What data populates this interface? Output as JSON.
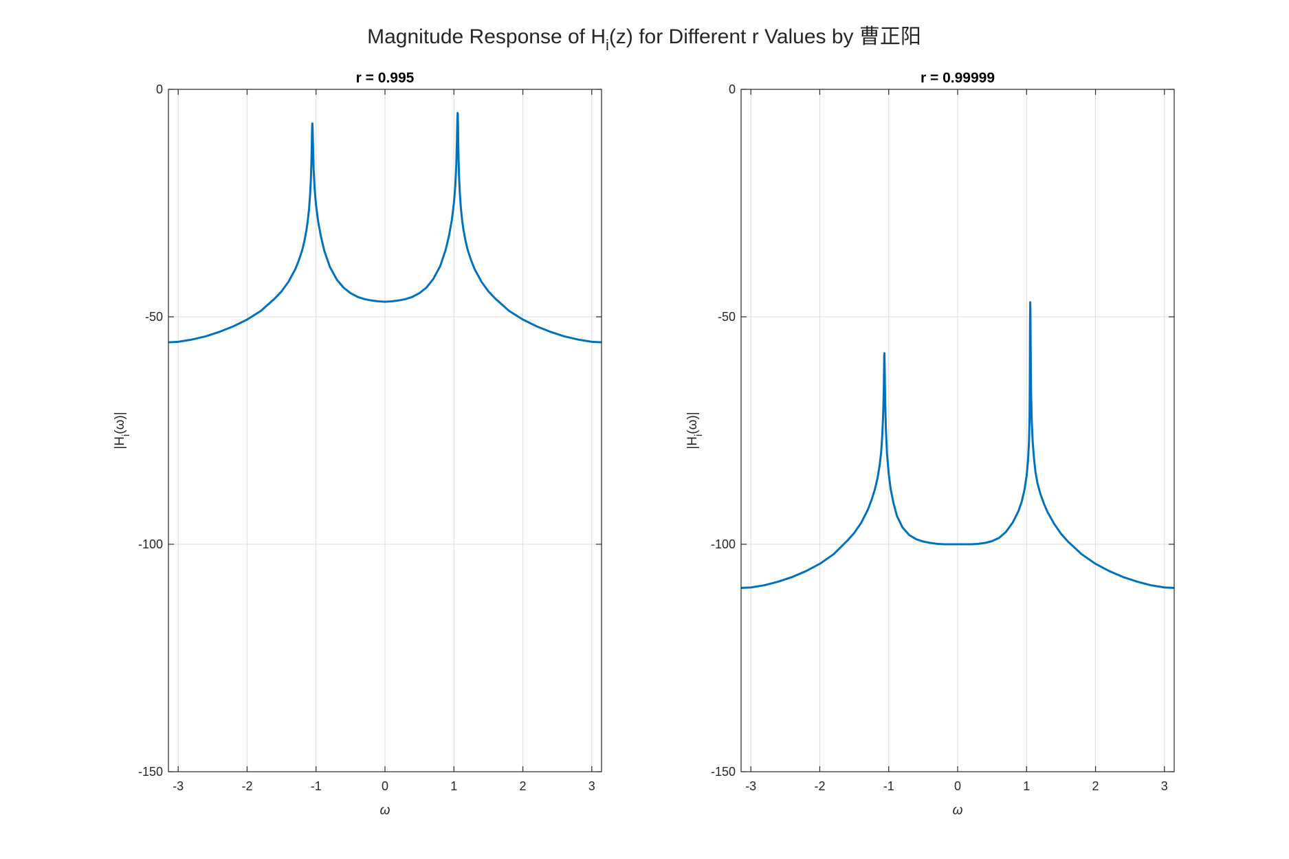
{
  "figure": {
    "title_main": "Magnitude Response of H",
    "title_sub": "i",
    "title_rest": "(z) for Different r Values by 曹正阳"
  },
  "chart_data": [
    {
      "type": "line",
      "title": "r = 0.995",
      "xlabel": "ω",
      "ylabel_main": "|H",
      "ylabel_sub": "i",
      "ylabel_rest": "(ω)|",
      "xlim": [
        -3.1416,
        3.1416
      ],
      "ylim": [
        -150,
        0
      ],
      "xticks": [
        -3,
        -2,
        -1,
        0,
        1,
        2,
        3
      ],
      "yticks": [
        -150,
        -100,
        -50,
        0
      ],
      "grid": true,
      "series": [
        {
          "color": "#0072BD",
          "x": [
            -3.1416,
            -3.0,
            -2.8,
            -2.6,
            -2.4,
            -2.2,
            -2.0,
            -1.8,
            -1.6,
            -1.5,
            -1.4,
            -1.3,
            -1.25,
            -1.2,
            -1.17,
            -1.14,
            -1.12,
            -1.1,
            -1.085,
            -1.075,
            -1.068,
            -1.063,
            -1.06,
            -1.057,
            -1.054,
            -1.05,
            -1.045,
            -1.035,
            -1.02,
            -1.0,
            -0.97,
            -0.93,
            -0.88,
            -0.8,
            -0.7,
            -0.6,
            -0.5,
            -0.4,
            -0.3,
            -0.2,
            -0.1,
            0.0,
            0.1,
            0.2,
            0.3,
            0.4,
            0.5,
            0.6,
            0.7,
            0.8,
            0.88,
            0.93,
            0.97,
            1.0,
            1.02,
            1.035,
            1.045,
            1.05,
            1.054,
            1.057,
            1.06,
            1.063,
            1.068,
            1.075,
            1.085,
            1.1,
            1.12,
            1.14,
            1.17,
            1.2,
            1.25,
            1.3,
            1.4,
            1.5,
            1.6,
            1.8,
            2.0,
            2.2,
            2.4,
            2.6,
            2.8,
            3.0,
            3.1416
          ],
          "y": [
            -55.6,
            -55.5,
            -55.0,
            -54.3,
            -53.3,
            -52.1,
            -50.6,
            -48.7,
            -46.0,
            -44.4,
            -42.3,
            -39.5,
            -37.6,
            -35.3,
            -33.4,
            -31.0,
            -28.9,
            -26.0,
            -22.8,
            -19.8,
            -16.5,
            -13.0,
            -10.5,
            -8.3,
            -7.5,
            -8.5,
            -12.0,
            -17.5,
            -22.0,
            -25.5,
            -29.0,
            -32.3,
            -35.5,
            -39.0,
            -41.8,
            -43.6,
            -44.8,
            -45.6,
            -46.1,
            -46.4,
            -46.6,
            -46.7,
            -46.6,
            -46.4,
            -46.1,
            -45.6,
            -44.8,
            -43.6,
            -41.7,
            -38.9,
            -35.3,
            -32.1,
            -28.7,
            -25.0,
            -21.2,
            -16.5,
            -10.5,
            -6.5,
            -5.2,
            -5.5,
            -8.0,
            -11.5,
            -15.5,
            -19.3,
            -22.5,
            -25.9,
            -28.9,
            -31.0,
            -33.4,
            -35.3,
            -37.6,
            -39.5,
            -42.3,
            -44.4,
            -46.0,
            -48.7,
            -50.6,
            -52.1,
            -53.3,
            -54.3,
            -55.0,
            -55.5,
            -55.6
          ]
        }
      ]
    },
    {
      "type": "line",
      "title": "r = 0.99999",
      "xlabel": "ω",
      "ylabel_main": "|H",
      "ylabel_sub": "i",
      "ylabel_rest": "(ω)|",
      "xlim": [
        -3.1416,
        3.1416
      ],
      "ylim": [
        -150,
        0
      ],
      "xticks": [
        -3,
        -2,
        -1,
        0,
        1,
        2,
        3
      ],
      "yticks": [
        -150,
        -100,
        -50,
        0
      ],
      "grid": true,
      "series": [
        {
          "color": "#0072BD",
          "x": [
            -3.1416,
            -3.0,
            -2.8,
            -2.6,
            -2.4,
            -2.2,
            -2.0,
            -1.8,
            -1.6,
            -1.5,
            -1.4,
            -1.3,
            -1.25,
            -1.2,
            -1.16,
            -1.13,
            -1.11,
            -1.095,
            -1.083,
            -1.075,
            -1.07,
            -1.067,
            -1.065,
            -1.062,
            -1.058,
            -1.05,
            -1.04,
            -1.025,
            -1.0,
            -0.97,
            -0.93,
            -0.88,
            -0.8,
            -0.7,
            -0.6,
            -0.5,
            -0.4,
            -0.3,
            -0.2,
            -0.1,
            0.0,
            0.1,
            0.2,
            0.3,
            0.4,
            0.5,
            0.6,
            0.7,
            0.8,
            0.88,
            0.93,
            0.97,
            1.0,
            1.02,
            1.035,
            1.043,
            1.047,
            1.05,
            1.053,
            1.056,
            1.06,
            1.065,
            1.075,
            1.09,
            1.11,
            1.13,
            1.16,
            1.2,
            1.25,
            1.3,
            1.4,
            1.5,
            1.6,
            1.8,
            2.0,
            2.2,
            2.4,
            2.6,
            2.8,
            3.0,
            3.1416
          ],
          "y": [
            -109.6,
            -109.5,
            -109.0,
            -108.2,
            -107.2,
            -105.9,
            -104.3,
            -102.2,
            -99.2,
            -97.5,
            -95.3,
            -92.3,
            -90.3,
            -87.9,
            -85.3,
            -82.5,
            -79.8,
            -76.5,
            -72.5,
            -68.5,
            -64.5,
            -61.0,
            -58.5,
            -58.0,
            -62.0,
            -69.5,
            -75.0,
            -80.0,
            -84.5,
            -88.0,
            -91.0,
            -93.8,
            -96.3,
            -98.0,
            -98.9,
            -99.4,
            -99.7,
            -99.9,
            -100.0,
            -100.0,
            -100.0,
            -100.0,
            -100.0,
            -99.9,
            -99.7,
            -99.3,
            -98.6,
            -97.3,
            -95.2,
            -92.8,
            -90.6,
            -88.0,
            -85.0,
            -81.8,
            -77.5,
            -72.5,
            -64.0,
            -52.0,
            -46.8,
            -48.5,
            -57.0,
            -66.0,
            -73.0,
            -77.8,
            -81.5,
            -84.2,
            -86.7,
            -88.9,
            -91.0,
            -92.8,
            -95.5,
            -97.7,
            -99.4,
            -102.2,
            -104.3,
            -105.9,
            -107.2,
            -108.2,
            -109.0,
            -109.5,
            -109.6
          ]
        }
      ]
    }
  ]
}
